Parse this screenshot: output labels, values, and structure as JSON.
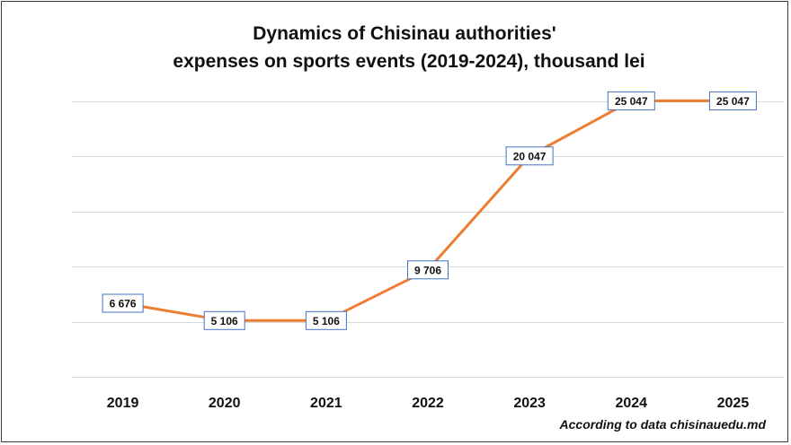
{
  "chart_data": {
    "type": "line",
    "title_line1": "Dynamics of Chisinau authorities'",
    "title_line2": "expenses on sports events (2019-2024), thousand lei",
    "categories": [
      "2019",
      "2020",
      "2021",
      "2022",
      "2023",
      "2024",
      "2025"
    ],
    "series": [
      {
        "values": [
          6676,
          5106,
          5106,
          9706,
          20047,
          25047,
          25047
        ]
      }
    ],
    "data_labels": [
      "6 676",
      "5 106",
      "5 106",
      "9 706",
      "20 047",
      "25 047",
      "25 047"
    ],
    "ylim": [
      0,
      25000
    ],
    "grid": true,
    "line_color": "#ED7D31",
    "label_border_color": "#4472C4",
    "source": "According to data chisinauedu.md"
  }
}
